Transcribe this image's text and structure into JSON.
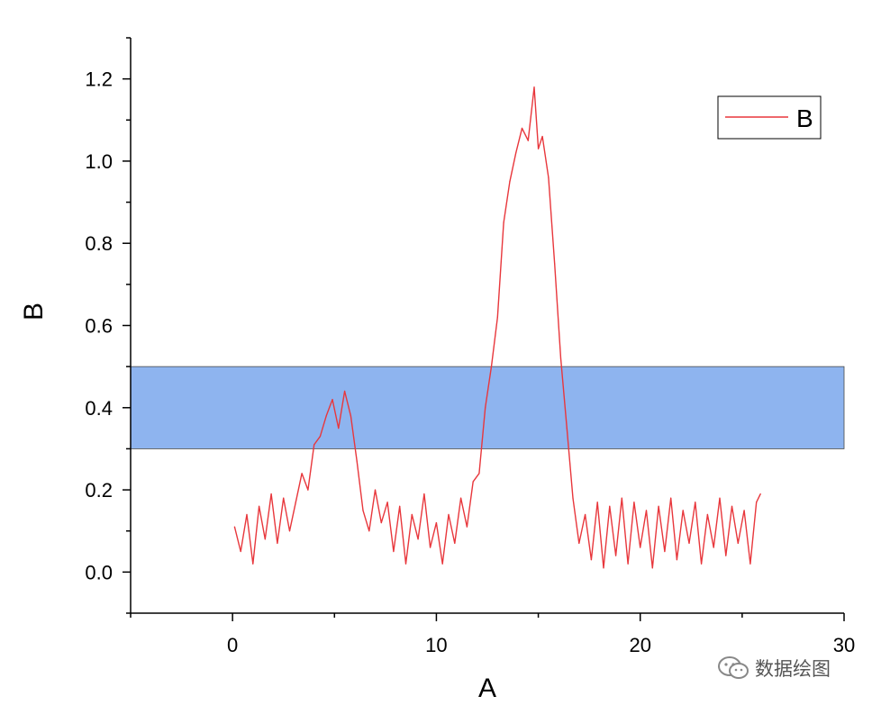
{
  "chart_data": {
    "type": "line",
    "xlabel": "A",
    "ylabel": "B",
    "xlim": [
      -5,
      30
    ],
    "ylim": [
      -0.1,
      1.3
    ],
    "x_ticks": [
      0,
      10,
      20,
      30
    ],
    "y_ticks": [
      0.0,
      0.2,
      0.4,
      0.6,
      0.8,
      1.0,
      1.2
    ],
    "x_tick_labels": [
      "0",
      "10",
      "20",
      "30"
    ],
    "y_tick_labels": [
      "0.0",
      "0.2",
      "0.4",
      "0.6",
      "0.8",
      "1.0",
      "1.2"
    ],
    "legend": {
      "position": "top-right",
      "entries": [
        "B"
      ]
    },
    "band": {
      "y_range": [
        0.3,
        0.5
      ],
      "x_range": [
        -5,
        30
      ],
      "color": "#8eb4ef"
    },
    "series": [
      {
        "name": "B",
        "color": "#e8373c",
        "x": [
          0.1,
          0.4,
          0.7,
          1.0,
          1.3,
          1.6,
          1.9,
          2.2,
          2.5,
          2.8,
          3.1,
          3.4,
          3.7,
          4.0,
          4.3,
          4.6,
          4.9,
          5.2,
          5.5,
          5.8,
          6.1,
          6.4,
          6.7,
          7.0,
          7.3,
          7.6,
          7.9,
          8.2,
          8.5,
          8.8,
          9.1,
          9.4,
          9.7,
          10.0,
          10.3,
          10.6,
          10.9,
          11.2,
          11.5,
          11.8,
          12.1,
          12.4,
          12.7,
          13.0,
          13.3,
          13.6,
          13.9,
          14.2,
          14.5,
          14.8,
          15.0,
          15.2,
          15.5,
          15.8,
          16.1,
          16.4,
          16.7,
          17.0,
          17.3,
          17.6,
          17.9,
          18.2,
          18.5,
          18.8,
          19.1,
          19.4,
          19.7,
          20.0,
          20.3,
          20.6,
          20.9,
          21.2,
          21.5,
          21.8,
          22.1,
          22.4,
          22.7,
          23.0,
          23.3,
          23.6,
          23.9,
          24.2,
          24.5,
          24.8,
          25.1,
          25.4,
          25.7,
          25.9
        ],
        "y": [
          0.11,
          0.05,
          0.14,
          0.02,
          0.16,
          0.08,
          0.19,
          0.07,
          0.18,
          0.1,
          0.17,
          0.24,
          0.2,
          0.31,
          0.33,
          0.38,
          0.42,
          0.35,
          0.44,
          0.38,
          0.27,
          0.15,
          0.1,
          0.2,
          0.12,
          0.17,
          0.05,
          0.16,
          0.02,
          0.14,
          0.08,
          0.19,
          0.06,
          0.12,
          0.02,
          0.14,
          0.07,
          0.18,
          0.11,
          0.22,
          0.24,
          0.4,
          0.5,
          0.62,
          0.85,
          0.95,
          1.02,
          1.08,
          1.05,
          1.18,
          1.03,
          1.06,
          0.96,
          0.75,
          0.52,
          0.35,
          0.18,
          0.07,
          0.14,
          0.03,
          0.17,
          0.01,
          0.16,
          0.04,
          0.18,
          0.02,
          0.17,
          0.06,
          0.15,
          0.01,
          0.16,
          0.05,
          0.18,
          0.03,
          0.15,
          0.07,
          0.17,
          0.02,
          0.14,
          0.06,
          0.18,
          0.04,
          0.16,
          0.07,
          0.15,
          0.02,
          0.17,
          0.19
        ]
      }
    ]
  },
  "watermark": {
    "text": "数据绘图"
  }
}
